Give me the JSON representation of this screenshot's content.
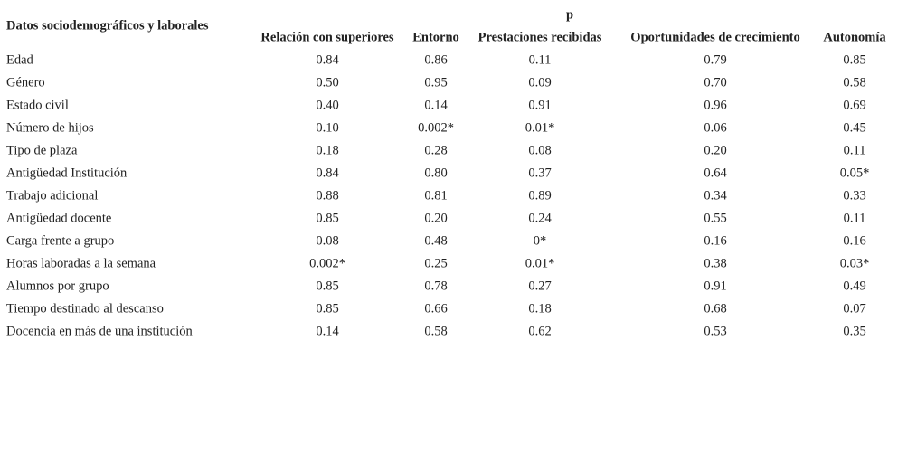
{
  "header": {
    "row_header": "Datos sociodemográficos y laborales",
    "group_label": "p",
    "columns": [
      "Relación con superiores",
      "Entorno",
      "Prestaciones recibidas",
      "Oportunidades de crecimiento",
      "Autonomía"
    ]
  },
  "rows": [
    {
      "label": "Edad",
      "values": [
        "0.84",
        "0.86",
        "0.11",
        "0.79",
        "0.85"
      ]
    },
    {
      "label": "Género",
      "values": [
        "0.50",
        "0.95",
        "0.09",
        "0.70",
        "0.58"
      ]
    },
    {
      "label": "Estado civil",
      "values": [
        "0.40",
        "0.14",
        "0.91",
        "0.96",
        "0.69"
      ]
    },
    {
      "label": "Número de hijos",
      "values": [
        "0.10",
        "0.002*",
        "0.01*",
        "0.06",
        "0.45"
      ]
    },
    {
      "label": "Tipo de plaza",
      "values": [
        "0.18",
        "0.28",
        "0.08",
        "0.20",
        "0.11"
      ]
    },
    {
      "label": "Antigüedad Institución",
      "values": [
        "0.84",
        "0.80",
        "0.37",
        "0.64",
        "0.05*"
      ]
    },
    {
      "label": "Trabajo adicional",
      "values": [
        "0.88",
        "0.81",
        "0.89",
        "0.34",
        "0.33"
      ]
    },
    {
      "label": "Antigüedad docente",
      "values": [
        "0.85",
        "0.20",
        "0.24",
        "0.55",
        "0.11"
      ]
    },
    {
      "label": "Carga frente a grupo",
      "values": [
        "0.08",
        "0.48",
        "0*",
        "0.16",
        "0.16"
      ]
    },
    {
      "label": "Horas laboradas a la semana",
      "values": [
        "0.002*",
        "0.25",
        "0.01*",
        "0.38",
        "0.03*"
      ]
    },
    {
      "label": "Alumnos por grupo",
      "values": [
        "0.85",
        "0.78",
        "0.27",
        "0.91",
        "0.49"
      ]
    },
    {
      "label": "Tiempo destinado al descanso",
      "values": [
        "0.85",
        "0.66",
        "0.18",
        "0.68",
        "0.07"
      ]
    },
    {
      "label": "Docencia en más de una institución",
      "values": [
        "0.14",
        "0.58",
        "0.62",
        "0.53",
        "0.35"
      ]
    }
  ]
}
